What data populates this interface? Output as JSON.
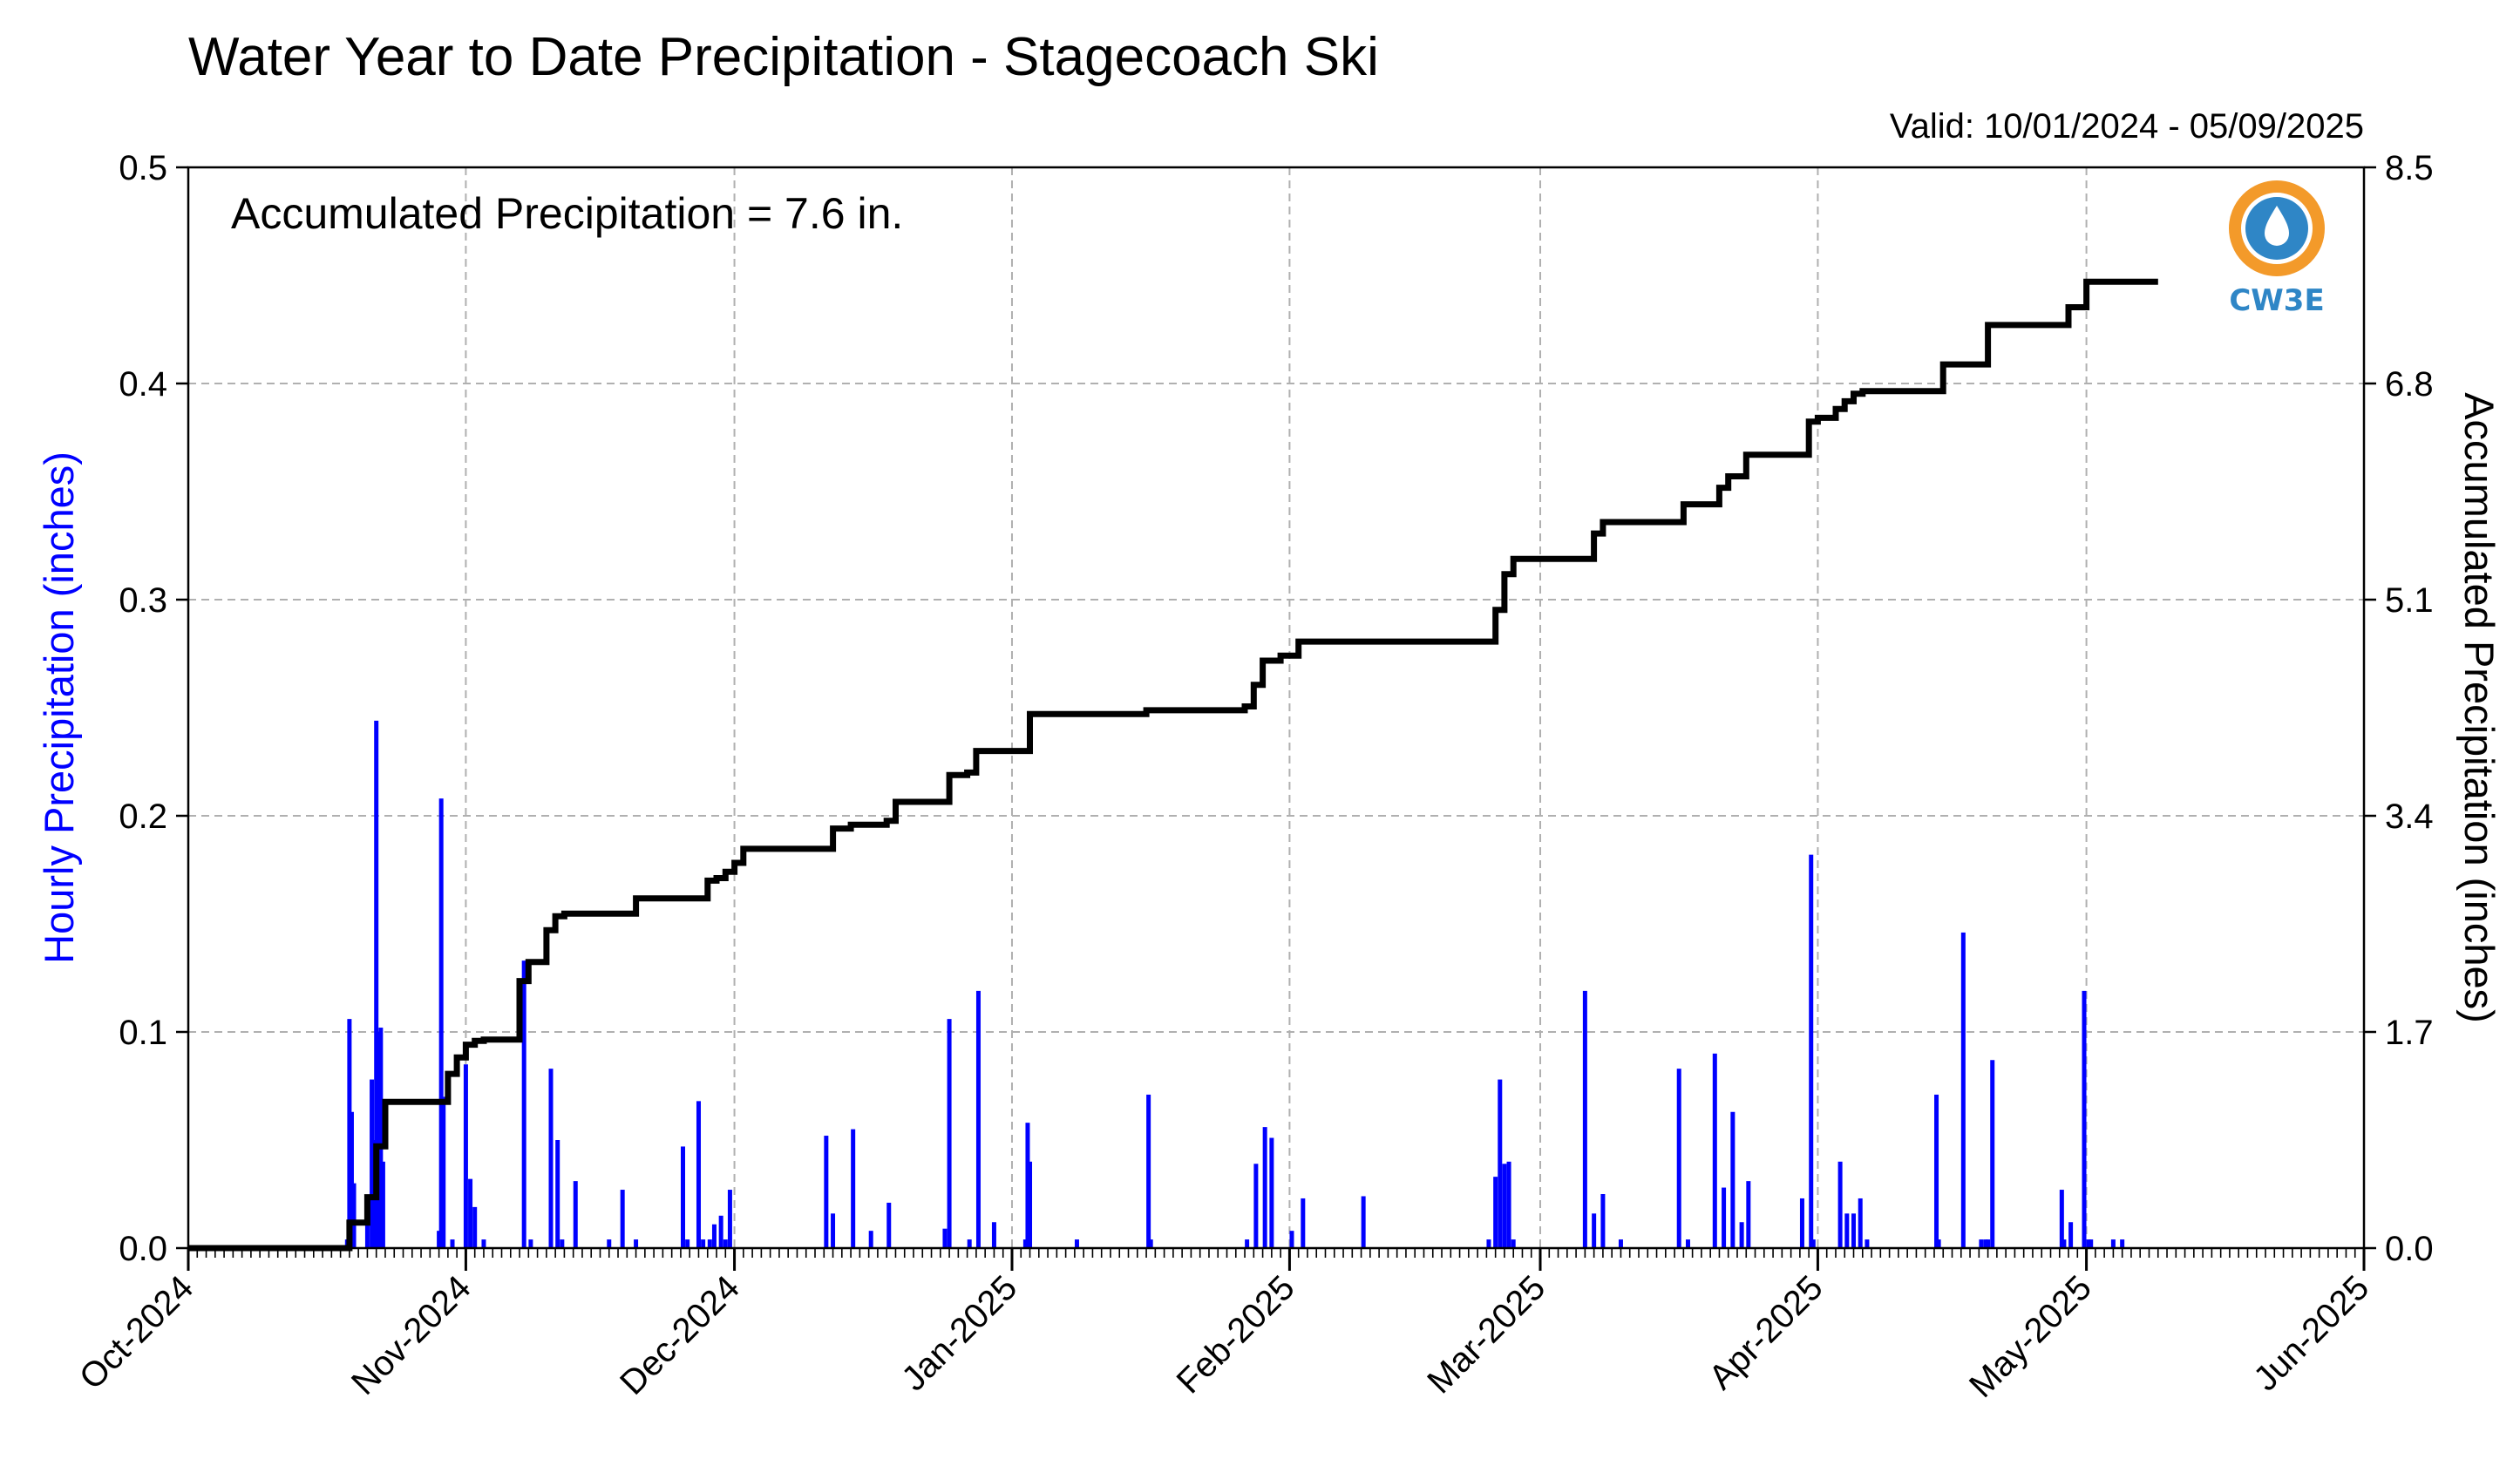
{
  "title": "Water Year to Date Precipitation - Stagecoach Ski",
  "valid_text": "Valid: 10/01/2024 - 05/09/2025",
  "annotation": "Accumulated Precipitation = 7.6 in.",
  "logo_text": "CW3E",
  "colors": {
    "hourly": "#0000ff",
    "accumulated": "#000000",
    "grid": "#b0b0b0",
    "logo_orange": "#f39a2a",
    "logo_blue": "#2f86c6"
  },
  "chart_data": {
    "type": "bar",
    "title": "Water Year to Date Precipitation - Stagecoach Ski",
    "xlabel": "",
    "ylabel": "Hourly Precipitation (inches)",
    "y2label": "Accumulated Precipitation (inches)",
    "xlim": [
      "2024-10-01",
      "2025-06-01"
    ],
    "ylim": [
      0,
      0.5
    ],
    "y2lim": [
      0,
      8.5
    ],
    "x_tick_labels": [
      "Oct-2024",
      "Nov-2024",
      "Dec-2024",
      "Jan-2025",
      "Feb-2025",
      "Mar-2025",
      "Apr-2025",
      "May-2025",
      "Jun-2025"
    ],
    "x_tick_dates": [
      "2024-10-01",
      "2024-11-01",
      "2024-12-01",
      "2025-01-01",
      "2025-02-01",
      "2025-03-01",
      "2025-04-01",
      "2025-05-01",
      "2025-06-01"
    ],
    "y_ticks": [
      "0.0",
      "0.1",
      "0.2",
      "0.3",
      "0.4",
      "0.5"
    ],
    "y2_ticks": [
      "0.0",
      "1.7",
      "3.4",
      "5.1",
      "6.8",
      "8.5"
    ],
    "grid": true,
    "series": [
      {
        "name": "Hourly Precipitation",
        "type": "bar",
        "x": [
          "2024-10-18T18:00",
          "2024-10-19T00:00",
          "2024-10-19T06:00",
          "2024-10-19T12:00",
          "2024-10-21T00:00",
          "2024-10-21T12:00",
          "2024-10-21T18:00",
          "2024-10-22T00:00",
          "2024-10-22T06:00",
          "2024-10-22T12:00",
          "2024-10-22T18:00",
          "2024-10-29T00:00",
          "2024-10-29T06:00",
          "2024-10-29T12:00",
          "2024-10-30T12:00",
          "2024-11-01T00:00",
          "2024-11-01T12:00",
          "2024-11-02T00:00",
          "2024-11-03T00:00",
          "2024-11-07T12:00",
          "2024-11-08T06:00",
          "2024-11-10T12:00",
          "2024-11-11T06:00",
          "2024-11-11T18:00",
          "2024-11-13T06:00",
          "2024-11-17T00:00",
          "2024-11-18T12:00",
          "2024-11-20T00:00",
          "2024-11-25T06:00",
          "2024-11-25T18:00",
          "2024-11-27T00:00",
          "2024-11-27T12:00",
          "2024-11-28T06:00",
          "2024-11-28T18:00",
          "2024-11-29T12:00",
          "2024-11-30T00:00",
          "2024-11-30T12:00",
          "2024-12-11T06:00",
          "2024-12-12T00:00",
          "2024-12-14T06:00",
          "2024-12-16T06:00",
          "2024-12-18T06:00",
          "2024-12-24T12:00",
          "2024-12-25T00:00",
          "2024-12-27T06:00",
          "2024-12-28T06:00",
          "2024-12-30T00:00",
          "2025-01-02T12:00",
          "2025-01-02T18:00",
          "2025-01-03T00:00",
          "2025-01-08T06:00",
          "2025-01-16T06:00",
          "2025-01-16T12:00",
          "2025-01-27T06:00",
          "2025-01-28T06:00",
          "2025-01-29T06:00",
          "2025-01-30T00:00",
          "2025-02-01T06:00",
          "2025-02-02T12:00",
          "2025-02-09T06:00",
          "2025-02-23T06:00",
          "2025-02-24T00:00",
          "2025-02-24T12:00",
          "2025-02-25T00:00",
          "2025-02-25T12:00",
          "2025-02-26T00:00",
          "2025-03-06T00:00",
          "2025-03-07T00:00",
          "2025-03-08T00:00",
          "2025-03-10T00:00",
          "2025-03-16T12:00",
          "2025-03-17T12:00",
          "2025-03-20T12:00",
          "2025-03-21T12:00",
          "2025-03-22T12:00",
          "2025-03-23T12:00",
          "2025-03-24T06:00",
          "2025-03-30T06:00",
          "2025-03-31T06:00",
          "2025-03-31T12:00",
          "2025-04-03T12:00",
          "2025-04-04T06:00",
          "2025-04-05T00:00",
          "2025-04-05T18:00",
          "2025-04-06T12:00",
          "2025-04-14T06:00",
          "2025-04-14T12:00",
          "2025-04-17T06:00",
          "2025-04-19T06:00",
          "2025-04-19T18:00",
          "2025-04-20T00:00",
          "2025-04-20T12:00",
          "2025-04-28T06:00",
          "2025-04-28T12:00",
          "2025-04-29T06:00",
          "2025-04-30T18:00",
          "2025-05-01T06:00",
          "2025-05-01T12:00",
          "2025-05-04T00:00",
          "2025-05-05T00:00"
        ],
        "values": [
          0.004,
          0.106,
          0.063,
          0.03,
          0.012,
          0.078,
          0.05,
          0.244,
          0.1,
          0.102,
          0.04,
          0.008,
          0.208,
          0.07,
          0.004,
          0.085,
          0.032,
          0.019,
          0.004,
          0.133,
          0.004,
          0.083,
          0.05,
          0.004,
          0.031,
          0.004,
          0.027,
          0.004,
          0.047,
          0.004,
          0.068,
          0.004,
          0.004,
          0.011,
          0.015,
          0.004,
          0.027,
          0.052,
          0.016,
          0.055,
          0.008,
          0.021,
          0.009,
          0.106,
          0.004,
          0.119,
          0.012,
          0.004,
          0.058,
          0.04,
          0.004,
          0.071,
          0.004,
          0.004,
          0.039,
          0.056,
          0.051,
          0.008,
          0.023,
          0.024,
          0.004,
          0.033,
          0.078,
          0.039,
          0.04,
          0.004,
          0.119,
          0.016,
          0.025,
          0.004,
          0.083,
          0.004,
          0.09,
          0.028,
          0.063,
          0.012,
          0.031,
          0.023,
          0.182,
          0.004,
          0.04,
          0.016,
          0.016,
          0.023,
          0.004,
          0.071,
          0.004,
          0.146,
          0.004,
          0.004,
          0.004,
          0.087,
          0.027,
          0.004,
          0.012,
          0.119,
          0.004,
          0.004,
          0.004,
          0.004
        ]
      },
      {
        "name": "Accumulated Precipitation",
        "type": "line",
        "axis": "right",
        "x": [
          "2024-10-01",
          "2024-10-18T12:00",
          "2024-10-19",
          "2024-10-20",
          "2024-10-21",
          "2024-10-22",
          "2024-10-23",
          "2024-10-29",
          "2024-10-30",
          "2024-10-31",
          "2024-11-01",
          "2024-11-02",
          "2024-11-03",
          "2024-11-07",
          "2024-11-08",
          "2024-11-10",
          "2024-11-11",
          "2024-11-12",
          "2024-11-14",
          "2024-11-20",
          "2024-11-26",
          "2024-11-28",
          "2024-11-29",
          "2024-11-30",
          "2024-12-01",
          "2024-12-02",
          "2024-12-11",
          "2024-12-12",
          "2024-12-14",
          "2024-12-18",
          "2024-12-19",
          "2024-12-24",
          "2024-12-25",
          "2024-12-27",
          "2024-12-28",
          "2025-01-02",
          "2025-01-03",
          "2025-01-16",
          "2025-01-27",
          "2025-01-28",
          "2025-01-29",
          "2025-01-31",
          "2025-02-02",
          "2025-02-23",
          "2025-02-24",
          "2025-02-25",
          "2025-02-26",
          "2025-03-06",
          "2025-03-07",
          "2025-03-08",
          "2025-03-16",
          "2025-03-17",
          "2025-03-20",
          "2025-03-21",
          "2025-03-22",
          "2025-03-24",
          "2025-03-30",
          "2025-03-31",
          "2025-04-01",
          "2025-04-03",
          "2025-04-04",
          "2025-04-05",
          "2025-04-06",
          "2025-04-07",
          "2025-04-14",
          "2025-04-15",
          "2025-04-19",
          "2025-04-20",
          "2025-04-28",
          "2025-04-29",
          "2025-05-01",
          "2025-05-05",
          "2025-05-09"
        ],
        "values": [
          0.0,
          0.0,
          0.2,
          0.2,
          0.4,
          0.8,
          1.15,
          1.15,
          1.37,
          1.5,
          1.6,
          1.63,
          1.64,
          2.1,
          2.25,
          2.5,
          2.61,
          2.63,
          2.63,
          2.75,
          2.75,
          2.89,
          2.91,
          2.96,
          3.03,
          3.14,
          3.14,
          3.3,
          3.33,
          3.36,
          3.51,
          3.51,
          3.72,
          3.74,
          3.91,
          3.91,
          4.2,
          4.23,
          4.26,
          4.43,
          4.62,
          4.66,
          4.77,
          4.77,
          5.02,
          5.3,
          5.42,
          5.42,
          5.62,
          5.71,
          5.71,
          5.85,
          5.85,
          5.98,
          6.07,
          6.24,
          6.24,
          6.5,
          6.53,
          6.6,
          6.66,
          6.72,
          6.74,
          6.74,
          6.74,
          6.95,
          6.95,
          7.26,
          7.26,
          7.4,
          7.6,
          7.6,
          7.6
        ]
      }
    ]
  }
}
